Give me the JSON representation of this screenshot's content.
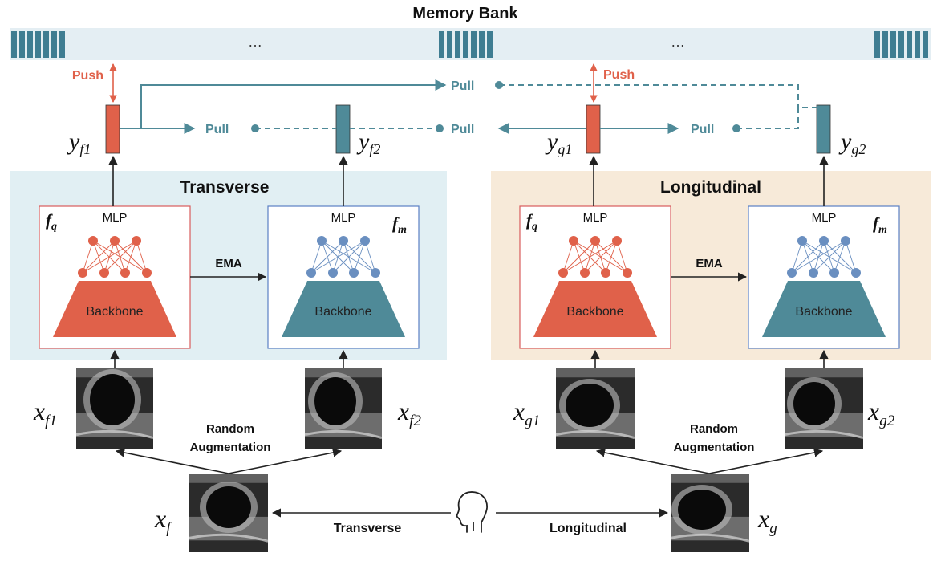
{
  "memory_bank": {
    "title": "Memory Bank",
    "ellipsis_left": "…",
    "ellipsis_right": "…"
  },
  "arrows": {
    "push": "Push",
    "pull": "Pull",
    "ema": "EMA",
    "random_aug_line1": "Random",
    "random_aug_line2": "Augmentation",
    "transverse": "Transverse",
    "longitudinal": "Longitudinal"
  },
  "embeddings": {
    "yf1": {
      "base": "y",
      "sub": "f1"
    },
    "yf2": {
      "base": "y",
      "sub": "f2"
    },
    "yg1": {
      "base": "y",
      "sub": "g1"
    },
    "yg2": {
      "base": "y",
      "sub": "g2"
    }
  },
  "inputs": {
    "xf": {
      "base": "x",
      "sub": "f"
    },
    "xg": {
      "base": "x",
      "sub": "g"
    },
    "xf1": {
      "base": "x",
      "sub": "f1"
    },
    "xf2": {
      "base": "x",
      "sub": "f2"
    },
    "xg1": {
      "base": "x",
      "sub": "g1"
    },
    "xg2": {
      "base": "x",
      "sub": "g2"
    }
  },
  "panels": {
    "transverse": {
      "title": "Transverse"
    },
    "longitudinal": {
      "title": "Longitudinal"
    }
  },
  "encoder": {
    "mlp": "MLP",
    "backbone": "Backbone",
    "query": {
      "base": "f",
      "sub": "q"
    },
    "momentum": {
      "base": "f",
      "sub": "m"
    }
  },
  "colors": {
    "query": "#e0614a",
    "momentum": "#4f8a98",
    "transverse_bg": "#e1eff3",
    "longitudinal_bg": "#f7ead9",
    "memory_bar": "#e4eef3",
    "memory_block": "#3f7d92",
    "pull": "#4f8a98",
    "push": "#e0614a"
  },
  "icons": {
    "person": "person-head-icon"
  }
}
